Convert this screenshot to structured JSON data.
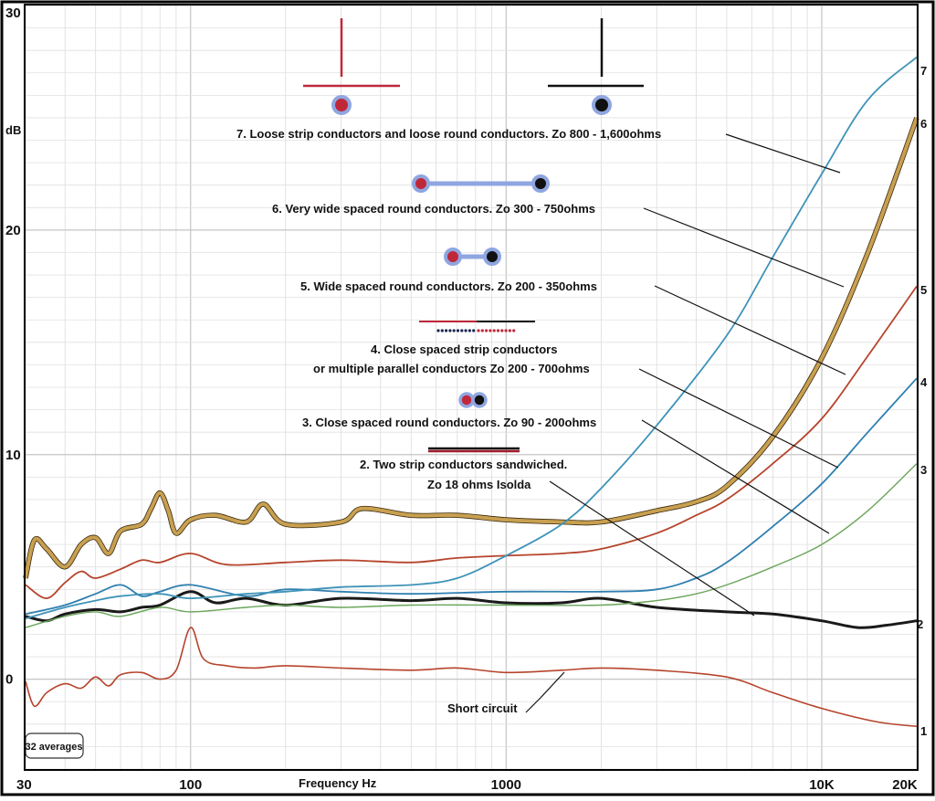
{
  "chart_data": {
    "type": "line",
    "x_scale": "log",
    "xlim": [
      30,
      20000
    ],
    "ylim": [
      -4,
      30
    ],
    "grid": true,
    "xlabel": "Frequency Hz",
    "ylabel": "dB",
    "x_ticks": [
      {
        "v": 30,
        "label": "30"
      },
      {
        "v": 100,
        "label": "100"
      },
      {
        "v": 1000,
        "label": "1000"
      },
      {
        "v": 10000,
        "label": "10K"
      },
      {
        "v": 20000,
        "label": "20K"
      }
    ],
    "y_ticks": [
      {
        "v": 30,
        "label": "30"
      },
      {
        "v": 20,
        "label": "20"
      },
      {
        "v": 10,
        "label": "10"
      },
      {
        "v": 0,
        "label": "0"
      }
    ],
    "badge": "32 averages",
    "series": [
      {
        "name": "1",
        "color": "#b5442c",
        "width": 1.6,
        "points": [
          [
            30,
            -0.1
          ],
          [
            32,
            -1.2
          ],
          [
            35,
            -0.6
          ],
          [
            40,
            -0.2
          ],
          [
            45,
            -0.4
          ],
          [
            50,
            0.1
          ],
          [
            55,
            -0.3
          ],
          [
            60,
            0.2
          ],
          [
            70,
            0.3
          ],
          [
            80,
            0.0
          ],
          [
            90,
            0.4
          ],
          [
            100,
            2.3
          ],
          [
            110,
            0.9
          ],
          [
            130,
            0.6
          ],
          [
            160,
            0.5
          ],
          [
            200,
            0.6
          ],
          [
            300,
            0.5
          ],
          [
            500,
            0.4
          ],
          [
            700,
            0.5
          ],
          [
            1000,
            0.3
          ],
          [
            1500,
            0.4
          ],
          [
            2000,
            0.5
          ],
          [
            3000,
            0.4
          ],
          [
            5000,
            0.1
          ],
          [
            7000,
            -0.6
          ],
          [
            10000,
            -1.3
          ],
          [
            15000,
            -1.9
          ],
          [
            20000,
            -2.1
          ]
        ]
      },
      {
        "name": "2",
        "color": "#1a1a1a",
        "width": 3,
        "points": [
          [
            30,
            2.8
          ],
          [
            35,
            2.6
          ],
          [
            40,
            2.9
          ],
          [
            50,
            3.1
          ],
          [
            60,
            3.0
          ],
          [
            70,
            3.2
          ],
          [
            80,
            3.3
          ],
          [
            100,
            3.9
          ],
          [
            120,
            3.4
          ],
          [
            150,
            3.6
          ],
          [
            200,
            3.3
          ],
          [
            300,
            3.6
          ],
          [
            500,
            3.5
          ],
          [
            700,
            3.6
          ],
          [
            1000,
            3.4
          ],
          [
            1500,
            3.4
          ],
          [
            2000,
            3.6
          ],
          [
            3000,
            3.2
          ],
          [
            5000,
            3.0
          ],
          [
            7000,
            2.9
          ],
          [
            10000,
            2.6
          ],
          [
            13000,
            2.3
          ],
          [
            16000,
            2.4
          ],
          [
            20000,
            2.6
          ]
        ]
      },
      {
        "name": "3",
        "color": "#6aa55a",
        "width": 1.4,
        "points": [
          [
            30,
            2.3
          ],
          [
            40,
            2.8
          ],
          [
            50,
            3.0
          ],
          [
            60,
            2.8
          ],
          [
            80,
            3.2
          ],
          [
            100,
            3.0
          ],
          [
            150,
            3.2
          ],
          [
            200,
            3.3
          ],
          [
            300,
            3.2
          ],
          [
            500,
            3.3
          ],
          [
            1000,
            3.3
          ],
          [
            2000,
            3.3
          ],
          [
            3000,
            3.5
          ],
          [
            4000,
            3.8
          ],
          [
            5000,
            4.2
          ],
          [
            7000,
            5.0
          ],
          [
            10000,
            6.0
          ],
          [
            14000,
            7.5
          ],
          [
            20000,
            9.6
          ]
        ]
      },
      {
        "name": "4",
        "color": "#2f7fb0",
        "width": 1.8,
        "points": [
          [
            30,
            2.9
          ],
          [
            40,
            3.3
          ],
          [
            50,
            3.8
          ],
          [
            60,
            4.2
          ],
          [
            70,
            3.7
          ],
          [
            80,
            3.9
          ],
          [
            100,
            4.2
          ],
          [
            150,
            3.7
          ],
          [
            200,
            4.0
          ],
          [
            300,
            3.9
          ],
          [
            500,
            3.8
          ],
          [
            1000,
            3.9
          ],
          [
            2000,
            3.9
          ],
          [
            3000,
            4.0
          ],
          [
            4000,
            4.5
          ],
          [
            5000,
            5.2
          ],
          [
            7000,
            6.8
          ],
          [
            10000,
            8.7
          ],
          [
            14000,
            11.0
          ],
          [
            20000,
            13.4
          ]
        ]
      },
      {
        "name": "5",
        "color": "#b5442c",
        "width": 1.8,
        "points": [
          [
            30,
            4.2
          ],
          [
            35,
            3.6
          ],
          [
            40,
            4.3
          ],
          [
            45,
            4.8
          ],
          [
            50,
            4.5
          ],
          [
            60,
            4.9
          ],
          [
            70,
            5.3
          ],
          [
            80,
            5.2
          ],
          [
            100,
            5.6
          ],
          [
            130,
            5.1
          ],
          [
            200,
            5.2
          ],
          [
            300,
            5.3
          ],
          [
            500,
            5.2
          ],
          [
            700,
            5.4
          ],
          [
            1000,
            5.5
          ],
          [
            1500,
            5.6
          ],
          [
            2000,
            5.8
          ],
          [
            3000,
            6.5
          ],
          [
            4000,
            7.3
          ],
          [
            5000,
            8.0
          ],
          [
            7000,
            9.6
          ],
          [
            10000,
            11.6
          ],
          [
            14000,
            14.4
          ],
          [
            20000,
            17.5
          ]
        ]
      },
      {
        "name": "6",
        "color": "#c8a050",
        "width": 4,
        "points": [
          [
            30,
            4.5
          ],
          [
            32,
            6.2
          ],
          [
            35,
            5.8
          ],
          [
            40,
            5.0
          ],
          [
            45,
            6.0
          ],
          [
            50,
            6.3
          ],
          [
            55,
            5.6
          ],
          [
            60,
            6.6
          ],
          [
            70,
            6.9
          ],
          [
            75,
            7.6
          ],
          [
            80,
            8.3
          ],
          [
            85,
            7.5
          ],
          [
            90,
            6.5
          ],
          [
            100,
            7.1
          ],
          [
            120,
            7.3
          ],
          [
            150,
            7.0
          ],
          [
            170,
            7.8
          ],
          [
            200,
            6.9
          ],
          [
            300,
            7.0
          ],
          [
            350,
            7.6
          ],
          [
            500,
            7.3
          ],
          [
            700,
            7.3
          ],
          [
            1000,
            7.1
          ],
          [
            1500,
            7.0
          ],
          [
            2000,
            7.0
          ],
          [
            3000,
            7.5
          ],
          [
            4000,
            7.9
          ],
          [
            5000,
            8.6
          ],
          [
            7000,
            10.8
          ],
          [
            10000,
            14.3
          ],
          [
            14000,
            19.0
          ],
          [
            20000,
            25.0
          ]
        ]
      },
      {
        "name": "7",
        "color": "#3f93b8",
        "width": 1.8,
        "points": [
          [
            30,
            2.7
          ],
          [
            40,
            3.2
          ],
          [
            50,
            3.5
          ],
          [
            60,
            3.7
          ],
          [
            80,
            3.8
          ],
          [
            100,
            3.6
          ],
          [
            150,
            3.8
          ],
          [
            200,
            3.9
          ],
          [
            300,
            4.1
          ],
          [
            500,
            4.2
          ],
          [
            700,
            4.5
          ],
          [
            1000,
            5.5
          ],
          [
            1500,
            6.9
          ],
          [
            2000,
            8.5
          ],
          [
            3000,
            11.3
          ],
          [
            5000,
            15.3
          ],
          [
            7000,
            18.8
          ],
          [
            10000,
            22.5
          ],
          [
            14000,
            25.8
          ],
          [
            20000,
            27.7
          ]
        ]
      }
    ],
    "curve_labels": [
      "7",
      "6",
      "5",
      "4",
      "3",
      "2",
      "1"
    ],
    "annotations": [
      {
        "text": "7. Loose strip conductors and loose round conductors. Zo 800 - 1,600ohms",
        "line_to": [
          10000,
          22.5
        ]
      },
      {
        "text": "6. Very wide spaced round conductors. Zo 300 - 750ohms",
        "line_to": [
          12000,
          17.8
        ]
      },
      {
        "text": "5.   Wide spaced round conductors. Zo 200 - 350ohms",
        "line_to": [
          12500,
          13.8
        ]
      },
      {
        "text": "4. Close spaced strip conductors",
        "line_to": null
      },
      {
        "text": "or multiple parallel conductors  Zo 200 - 700ohms",
        "line_to": [
          12000,
          10.0
        ]
      },
      {
        "text": "3. Close spaced round conductors.  Zo 90 - 200ohms",
        "line_to": [
          10000,
          6.6
        ]
      },
      {
        "text": "2. Two strip conductors sandwiched.",
        "line_to": null
      },
      {
        "text": "Zo 18 ohms   Isolda",
        "line_to": [
          8000,
          3.2
        ]
      },
      {
        "text": "Short circuit",
        "line_to": [
          1800,
          0.6
        ]
      }
    ]
  }
}
